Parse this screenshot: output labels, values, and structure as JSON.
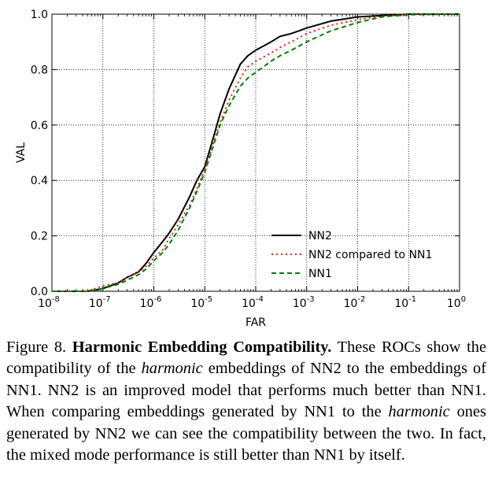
{
  "chart_data": {
    "type": "line",
    "xlabel": "FAR",
    "ylabel": "VAL",
    "x_scale": "log",
    "xlim": [
      1e-08,
      1
    ],
    "ylim": [
      0,
      1
    ],
    "x_ticks": [
      {
        "base": "10",
        "exp": "-8"
      },
      {
        "base": "10",
        "exp": "-7"
      },
      {
        "base": "10",
        "exp": "-6"
      },
      {
        "base": "10",
        "exp": "-5"
      },
      {
        "base": "10",
        "exp": "-4"
      },
      {
        "base": "10",
        "exp": "-3"
      },
      {
        "base": "10",
        "exp": "-2"
      },
      {
        "base": "10",
        "exp": "-1"
      },
      {
        "base": "10",
        "exp": "0"
      }
    ],
    "y_ticks": [
      "0.0",
      "0.2",
      "0.4",
      "0.6",
      "0.8",
      "1.0"
    ],
    "grid": true,
    "legend_position": "lower-right",
    "series": [
      {
        "name": "NN2",
        "color": "#000000",
        "style": "solid",
        "x": [
          1e-08,
          5e-08,
          1e-07,
          2e-07,
          3e-07,
          5e-07,
          7e-07,
          1e-06,
          1.5e-06,
          2e-06,
          3e-06,
          5e-06,
          7e-06,
          1e-05,
          1.5e-05,
          2e-05,
          3e-05,
          5e-05,
          7e-05,
          0.0001,
          0.0002,
          0.0003,
          0.0005,
          0.001,
          0.003,
          0.01,
          0.03,
          0.1,
          1
        ],
        "y": [
          0.0,
          0.0,
          0.01,
          0.03,
          0.05,
          0.07,
          0.1,
          0.14,
          0.18,
          0.21,
          0.26,
          0.34,
          0.4,
          0.45,
          0.56,
          0.64,
          0.73,
          0.82,
          0.85,
          0.87,
          0.9,
          0.92,
          0.93,
          0.95,
          0.975,
          0.99,
          0.995,
          1.0,
          1.0
        ]
      },
      {
        "name": "NN2 compared to NN1",
        "color": "#ff0000",
        "style": "dotted",
        "x": [
          1e-08,
          5e-08,
          1e-07,
          2e-07,
          3e-07,
          5e-07,
          7e-07,
          1e-06,
          1.5e-06,
          2e-06,
          3e-06,
          5e-06,
          7e-06,
          1e-05,
          1.5e-05,
          2e-05,
          3e-05,
          5e-05,
          7e-05,
          0.0001,
          0.0002,
          0.0003,
          0.0005,
          0.001,
          0.003,
          0.01,
          0.03,
          0.1,
          1
        ],
        "y": [
          0.0,
          0.0,
          0.02,
          0.03,
          0.05,
          0.07,
          0.09,
          0.12,
          0.15,
          0.19,
          0.24,
          0.31,
          0.37,
          0.44,
          0.54,
          0.61,
          0.69,
          0.77,
          0.81,
          0.83,
          0.86,
          0.88,
          0.9,
          0.93,
          0.96,
          0.98,
          0.993,
          1.0,
          1.0
        ]
      },
      {
        "name": "NN1",
        "color": "#008000",
        "style": "dashed",
        "x": [
          1e-08,
          5e-08,
          1e-07,
          2e-07,
          3e-07,
          5e-07,
          7e-07,
          1e-06,
          1.5e-06,
          2e-06,
          3e-06,
          5e-06,
          7e-06,
          1e-05,
          1.5e-05,
          2e-05,
          3e-05,
          5e-05,
          7e-05,
          0.0001,
          0.0002,
          0.0003,
          0.0005,
          0.001,
          0.003,
          0.01,
          0.03,
          0.1,
          1
        ],
        "y": [
          0.0,
          0.0,
          0.01,
          0.025,
          0.04,
          0.06,
          0.08,
          0.11,
          0.14,
          0.17,
          0.22,
          0.3,
          0.36,
          0.43,
          0.53,
          0.6,
          0.67,
          0.74,
          0.77,
          0.79,
          0.83,
          0.85,
          0.87,
          0.9,
          0.94,
          0.97,
          0.99,
          0.998,
          1.0
        ]
      }
    ]
  },
  "caption": {
    "label": "Figure 8.",
    "title": "Harmonic Embedding Compatibility.",
    "part1": "These ROCs show the compatibility of the",
    "em1": "harmonic",
    "part2": "embeddings of NN2 to the embeddings of NN1. NN2 is an improved model that performs much better than NN1. When comparing embeddings generated by NN1 to the",
    "em2": "harmonic",
    "part3": "ones generated by NN2 we can see the compatibility between the two. In fact, the mixed mode performance is still better than NN1 by itself."
  }
}
